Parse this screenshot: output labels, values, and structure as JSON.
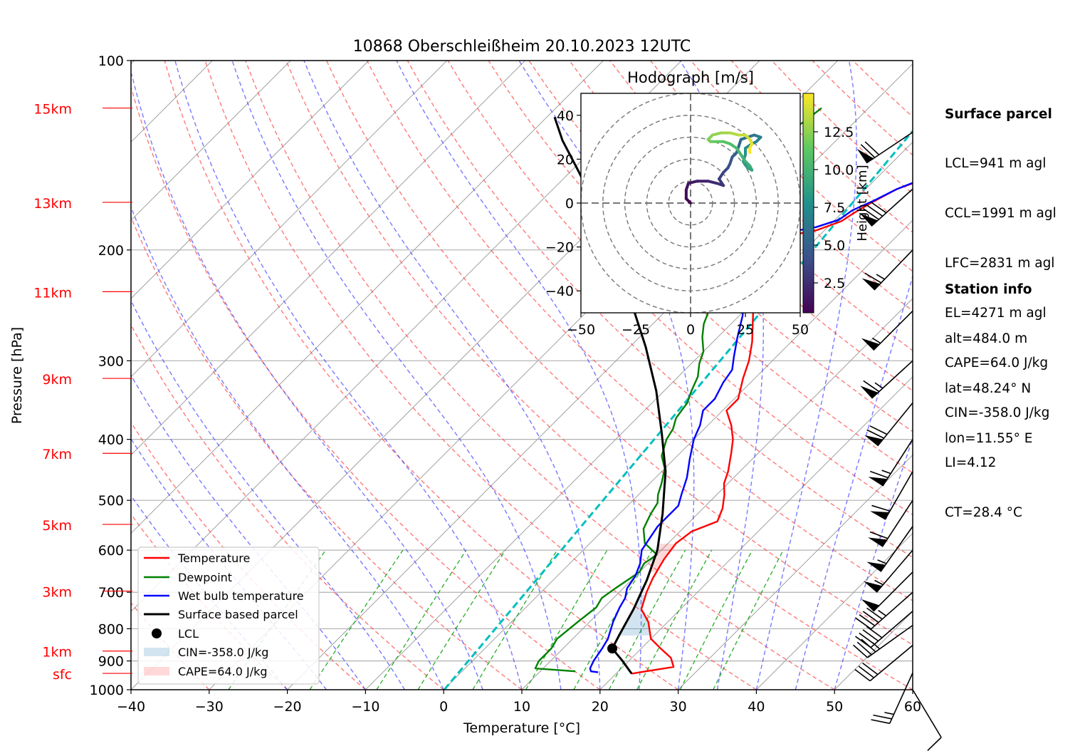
{
  "chart_data": {
    "type": "skew-t log-p diagram",
    "title": "10868 Oberschleißheim 20.10.2023 12UTC",
    "xlabel": "Temperature [°C]",
    "ylabel": "Pressure [hPa]",
    "xlim": [
      -40,
      60
    ],
    "ylim_hpa": [
      1000,
      100
    ],
    "y_scale": "log",
    "x_ticks": [
      "−40",
      "−30",
      "−20",
      "−10",
      "0",
      "10",
      "20",
      "30",
      "40",
      "50",
      "60"
    ],
    "y_ticks": [
      {
        "p": 1000,
        "label": "1000"
      },
      {
        "p": 900,
        "label": "900"
      },
      {
        "p": 800,
        "label": "800"
      },
      {
        "p": 700,
        "label": "700"
      },
      {
        "p": 600,
        "label": "600"
      },
      {
        "p": 500,
        "label": "500"
      },
      {
        "p": 400,
        "label": "400"
      },
      {
        "p": 300,
        "label": "300"
      },
      {
        "p": 200,
        "label": "200"
      },
      {
        "p": 100,
        "label": "100"
      }
    ],
    "height_labels": [
      {
        "label": "sfc",
        "p": 942
      },
      {
        "label": "1km",
        "p": 868
      },
      {
        "label": "3km",
        "p": 697
      },
      {
        "label": "5km",
        "p": 546
      },
      {
        "label": "7km",
        "p": 421
      },
      {
        "label": "9km",
        "p": 320
      },
      {
        "label": "11km",
        "p": 233
      },
      {
        "label": "13km",
        "p": 168
      },
      {
        "label": "15km",
        "p": 119
      }
    ],
    "series": [
      {
        "name": "Temperature",
        "color": "#ff0000",
        "points": [
          [
            22.0,
            943
          ],
          [
            23.5,
            935
          ],
          [
            26.5,
            920
          ],
          [
            25.0,
            890
          ],
          [
            22.5,
            860
          ],
          [
            20.0,
            830
          ],
          [
            17.5,
            780
          ],
          [
            15.0,
            745
          ],
          [
            13.5,
            700
          ],
          [
            12.5,
            665
          ],
          [
            11.5,
            620
          ],
          [
            11.0,
            585
          ],
          [
            11.5,
            560
          ],
          [
            13.5,
            540
          ],
          [
            12.5,
            515
          ],
          [
            11.0,
            490
          ],
          [
            9.5,
            470
          ],
          [
            8.5,
            450
          ],
          [
            6.5,
            420
          ],
          [
            5.0,
            400
          ],
          [
            3.0,
            380
          ],
          [
            0.5,
            360
          ],
          [
            0.5,
            345
          ],
          [
            -1.5,
            320
          ],
          [
            -3.0,
            300
          ],
          [
            -5.0,
            280
          ],
          [
            -7.5,
            260
          ],
          [
            -9.5,
            245
          ],
          [
            -12.0,
            230
          ],
          [
            -14.0,
            215
          ],
          [
            -15.0,
            205
          ],
          [
            -16.0,
            195
          ],
          [
            -14.0,
            190
          ],
          [
            -11.0,
            186
          ],
          [
            -9.0,
            180
          ],
          [
            -8.5,
            175
          ],
          [
            -7.5,
            168
          ],
          [
            -6.0,
            160
          ],
          [
            -2.0,
            150
          ],
          [
            -3.0,
            145
          ],
          [
            -3.0,
            138
          ],
          [
            -2.5,
            130
          ],
          [
            -3.0,
            122
          ],
          [
            -3.0,
            117
          ]
        ]
      },
      {
        "name": "Dewpoint",
        "color": "#008000",
        "points": [
          [
            14.5,
            935
          ],
          [
            9.0,
            925
          ],
          [
            8.5,
            900
          ],
          [
            8.5,
            860
          ],
          [
            8.0,
            830
          ],
          [
            8.5,
            780
          ],
          [
            9.0,
            740
          ],
          [
            8.5,
            715
          ],
          [
            9.0,
            690
          ],
          [
            9.5,
            670
          ],
          [
            10.0,
            650
          ],
          [
            9.5,
            630
          ],
          [
            10.0,
            610
          ],
          [
            7.0,
            585
          ],
          [
            5.0,
            555
          ],
          [
            4.5,
            540
          ],
          [
            4.0,
            525
          ],
          [
            3.5,
            505
          ],
          [
            2.5,
            490
          ],
          [
            1.5,
            470
          ],
          [
            0.0,
            445
          ],
          [
            -2.0,
            425
          ],
          [
            -3.5,
            400
          ],
          [
            -4.0,
            385
          ],
          [
            -5.0,
            370
          ],
          [
            -5.5,
            350
          ],
          [
            -6.5,
            335
          ],
          [
            -7.5,
            318
          ],
          [
            -9.0,
            303
          ],
          [
            -10.0,
            290
          ],
          [
            -12.0,
            275
          ],
          [
            -13.5,
            262
          ],
          [
            -14.5,
            250
          ],
          [
            -15.0,
            242
          ],
          [
            -17.5,
            233
          ],
          [
            -19.0,
            225
          ],
          [
            -19.5,
            213
          ],
          [
            -21.0,
            203
          ],
          [
            -22.0,
            193
          ],
          [
            -21.5,
            185
          ],
          [
            -20.0,
            180
          ],
          [
            -31.0,
            180
          ],
          [
            -29.0,
            174
          ],
          [
            -29.0,
            168
          ],
          [
            -29.5,
            160
          ],
          [
            -29.0,
            150
          ],
          [
            -28.5,
            140
          ],
          [
            -27.5,
            132
          ],
          [
            -26.5,
            125
          ],
          [
            -26.0,
            119
          ]
        ]
      },
      {
        "name": "Wet bulb temperature",
        "color": "#0000ff",
        "points": [
          [
            17.5,
            938
          ],
          [
            16.5,
            935
          ],
          [
            16.0,
            925
          ],
          [
            15.5,
            900
          ],
          [
            15.0,
            860
          ],
          [
            14.5,
            830
          ],
          [
            13.0,
            780
          ],
          [
            12.0,
            740
          ],
          [
            11.5,
            715
          ],
          [
            10.5,
            690
          ],
          [
            10.0,
            660
          ],
          [
            9.0,
            630
          ],
          [
            7.5,
            600
          ],
          [
            7.0,
            575
          ],
          [
            6.5,
            550
          ],
          [
            6.5,
            530
          ],
          [
            6.5,
            510
          ],
          [
            5.5,
            490
          ],
          [
            4.0,
            460
          ],
          [
            2.0,
            430
          ],
          [
            0.0,
            400
          ],
          [
            -1.0,
            380
          ],
          [
            -2.5,
            360
          ],
          [
            -2.5,
            345
          ],
          [
            -3.5,
            325
          ],
          [
            -4.0,
            310
          ],
          [
            -5.5,
            295
          ],
          [
            -7.5,
            275
          ],
          [
            -9.5,
            255
          ],
          [
            -12.0,
            235
          ],
          [
            -14.0,
            218
          ],
          [
            -15.5,
            205
          ],
          [
            -16.5,
            195
          ],
          [
            -16.0,
            190
          ],
          [
            -14.0,
            187
          ],
          [
            -11.5,
            184
          ],
          [
            -9.5,
            179
          ],
          [
            -9.0,
            173
          ],
          [
            -7.5,
            167
          ],
          [
            -6.0,
            160
          ],
          [
            -2.5,
            150
          ],
          [
            -3.5,
            145
          ],
          [
            -3.5,
            138
          ],
          [
            -2.5,
            130
          ],
          [
            -3.0,
            122
          ],
          [
            -3.0,
            117
          ]
        ]
      },
      {
        "name": "Surface based parcel",
        "color": "#000000",
        "points": [
          [
            22.0,
            943
          ],
          [
            19.2,
            900
          ],
          [
            16.3,
            860
          ],
          [
            15.5,
            820
          ],
          [
            14.0,
            745
          ],
          [
            12.0,
            670
          ],
          [
            9.5,
            600
          ],
          [
            5.5,
            525
          ],
          [
            0.5,
            450
          ],
          [
            -5.0,
            390
          ],
          [
            -11.0,
            335
          ],
          [
            -18.0,
            285
          ],
          [
            -25.0,
            245
          ],
          [
            -33.0,
            205
          ],
          [
            -41.0,
            175
          ],
          [
            -49.0,
            150
          ],
          [
            -55.0,
            134
          ],
          [
            -59.0,
            123
          ]
        ]
      }
    ],
    "lcl": {
      "name": "LCL",
      "t": 16.3,
      "p": 860
    },
    "cin": {
      "label": "CIN=-358.0 J/kg"
    },
    "cape": {
      "label": "CAPE=64.0 J/kg"
    },
    "hodograph": {
      "title": "Hodograph [m/s]",
      "xlim": [
        -50,
        50
      ],
      "ylim": [
        -50,
        50
      ],
      "x_ticks": [
        "−50",
        "−25",
        "0",
        "25",
        "50"
      ],
      "y_ticks": [
        "−40",
        "−20",
        "0",
        "20",
        "40"
      ],
      "rings": [
        10,
        20,
        30,
        40,
        50
      ],
      "colorbar_label": "Height [km]",
      "colorbar_ticks": [
        "2.5",
        "5.0",
        "7.5",
        "10.0",
        "12.5"
      ],
      "points": [
        [
          0,
          0
        ],
        [
          -2,
          2
        ],
        [
          -2,
          6
        ],
        [
          -1,
          9
        ],
        [
          3,
          10
        ],
        [
          8,
          10
        ],
        [
          12,
          9
        ],
        [
          15,
          8
        ],
        [
          13,
          11
        ],
        [
          15,
          14
        ],
        [
          17,
          16
        ],
        [
          18,
          18
        ],
        [
          19,
          21
        ],
        [
          21,
          23
        ],
        [
          22,
          26
        ],
        [
          23,
          29
        ],
        [
          26,
          30
        ],
        [
          29,
          31
        ],
        [
          32,
          30
        ],
        [
          30,
          28
        ],
        [
          28,
          27
        ],
        [
          25,
          25
        ],
        [
          25,
          22
        ],
        [
          24,
          19
        ],
        [
          26,
          16
        ],
        [
          28,
          15
        ],
        [
          27,
          17
        ],
        [
          25,
          19
        ],
        [
          23,
          22
        ],
        [
          21,
          25
        ],
        [
          18,
          27
        ],
        [
          15,
          28
        ],
        [
          12,
          28
        ],
        [
          9,
          28
        ],
        [
          8,
          29
        ],
        [
          10,
          31
        ],
        [
          14,
          32
        ],
        [
          18,
          32
        ],
        [
          22,
          31
        ],
        [
          25,
          31
        ],
        [
          27,
          29
        ],
        [
          28,
          27
        ],
        [
          27,
          25
        ],
        [
          27,
          23
        ]
      ]
    },
    "winds": [
      {
        "p": 1000,
        "u": -3,
        "v": 5
      },
      {
        "p": 940,
        "u": 5,
        "v": 11
      },
      {
        "p": 850,
        "u": 12,
        "v": 10
      },
      {
        "p": 790,
        "u": 14,
        "v": 10
      },
      {
        "p": 750,
        "u": 15,
        "v": 13
      },
      {
        "p": 700,
        "u": 17,
        "v": 15
      },
      {
        "p": 650,
        "u": 18,
        "v": 18
      },
      {
        "p": 600,
        "u": 18,
        "v": 21
      },
      {
        "p": 550,
        "u": 17,
        "v": 24
      },
      {
        "p": 500,
        "u": 17,
        "v": 26
      },
      {
        "p": 450,
        "u": 15,
        "v": 26
      },
      {
        "p": 400,
        "u": 18,
        "v": 28
      },
      {
        "p": 350,
        "u": 22,
        "v": 27
      },
      {
        "p": 300,
        "u": 24,
        "v": 22
      },
      {
        "p": 250,
        "u": 20,
        "v": 20
      },
      {
        "p": 200,
        "u": 24,
        "v": 25
      },
      {
        "p": 160,
        "u": 30,
        "v": 27
      },
      {
        "p": 130,
        "u": 30,
        "v": 20
      }
    ],
    "legend": {
      "placement": "lower left",
      "entries": [
        "Temperature",
        "Dewpoint",
        "Wet bulb temperature",
        "Surface based parcel",
        "LCL",
        "CIN=-358.0 J/kg",
        "CAPE=64.0 J/kg"
      ]
    }
  },
  "surface_parcel": {
    "heading": "Surface parcel",
    "lines": [
      "LCL=941 m agl",
      "CCL=1991 m agl",
      "LFC=2831 m agl",
      "EL=4271 m agl",
      "CAPE=64.0 J/kg",
      "CIN=-358.0 J/kg",
      "LI=4.12",
      "CT=28.4 °C"
    ]
  },
  "station_info": {
    "heading": "Station info",
    "lines": [
      "alt=484.0 m",
      "lat=48.24° N",
      "lon=11.55° E"
    ]
  }
}
